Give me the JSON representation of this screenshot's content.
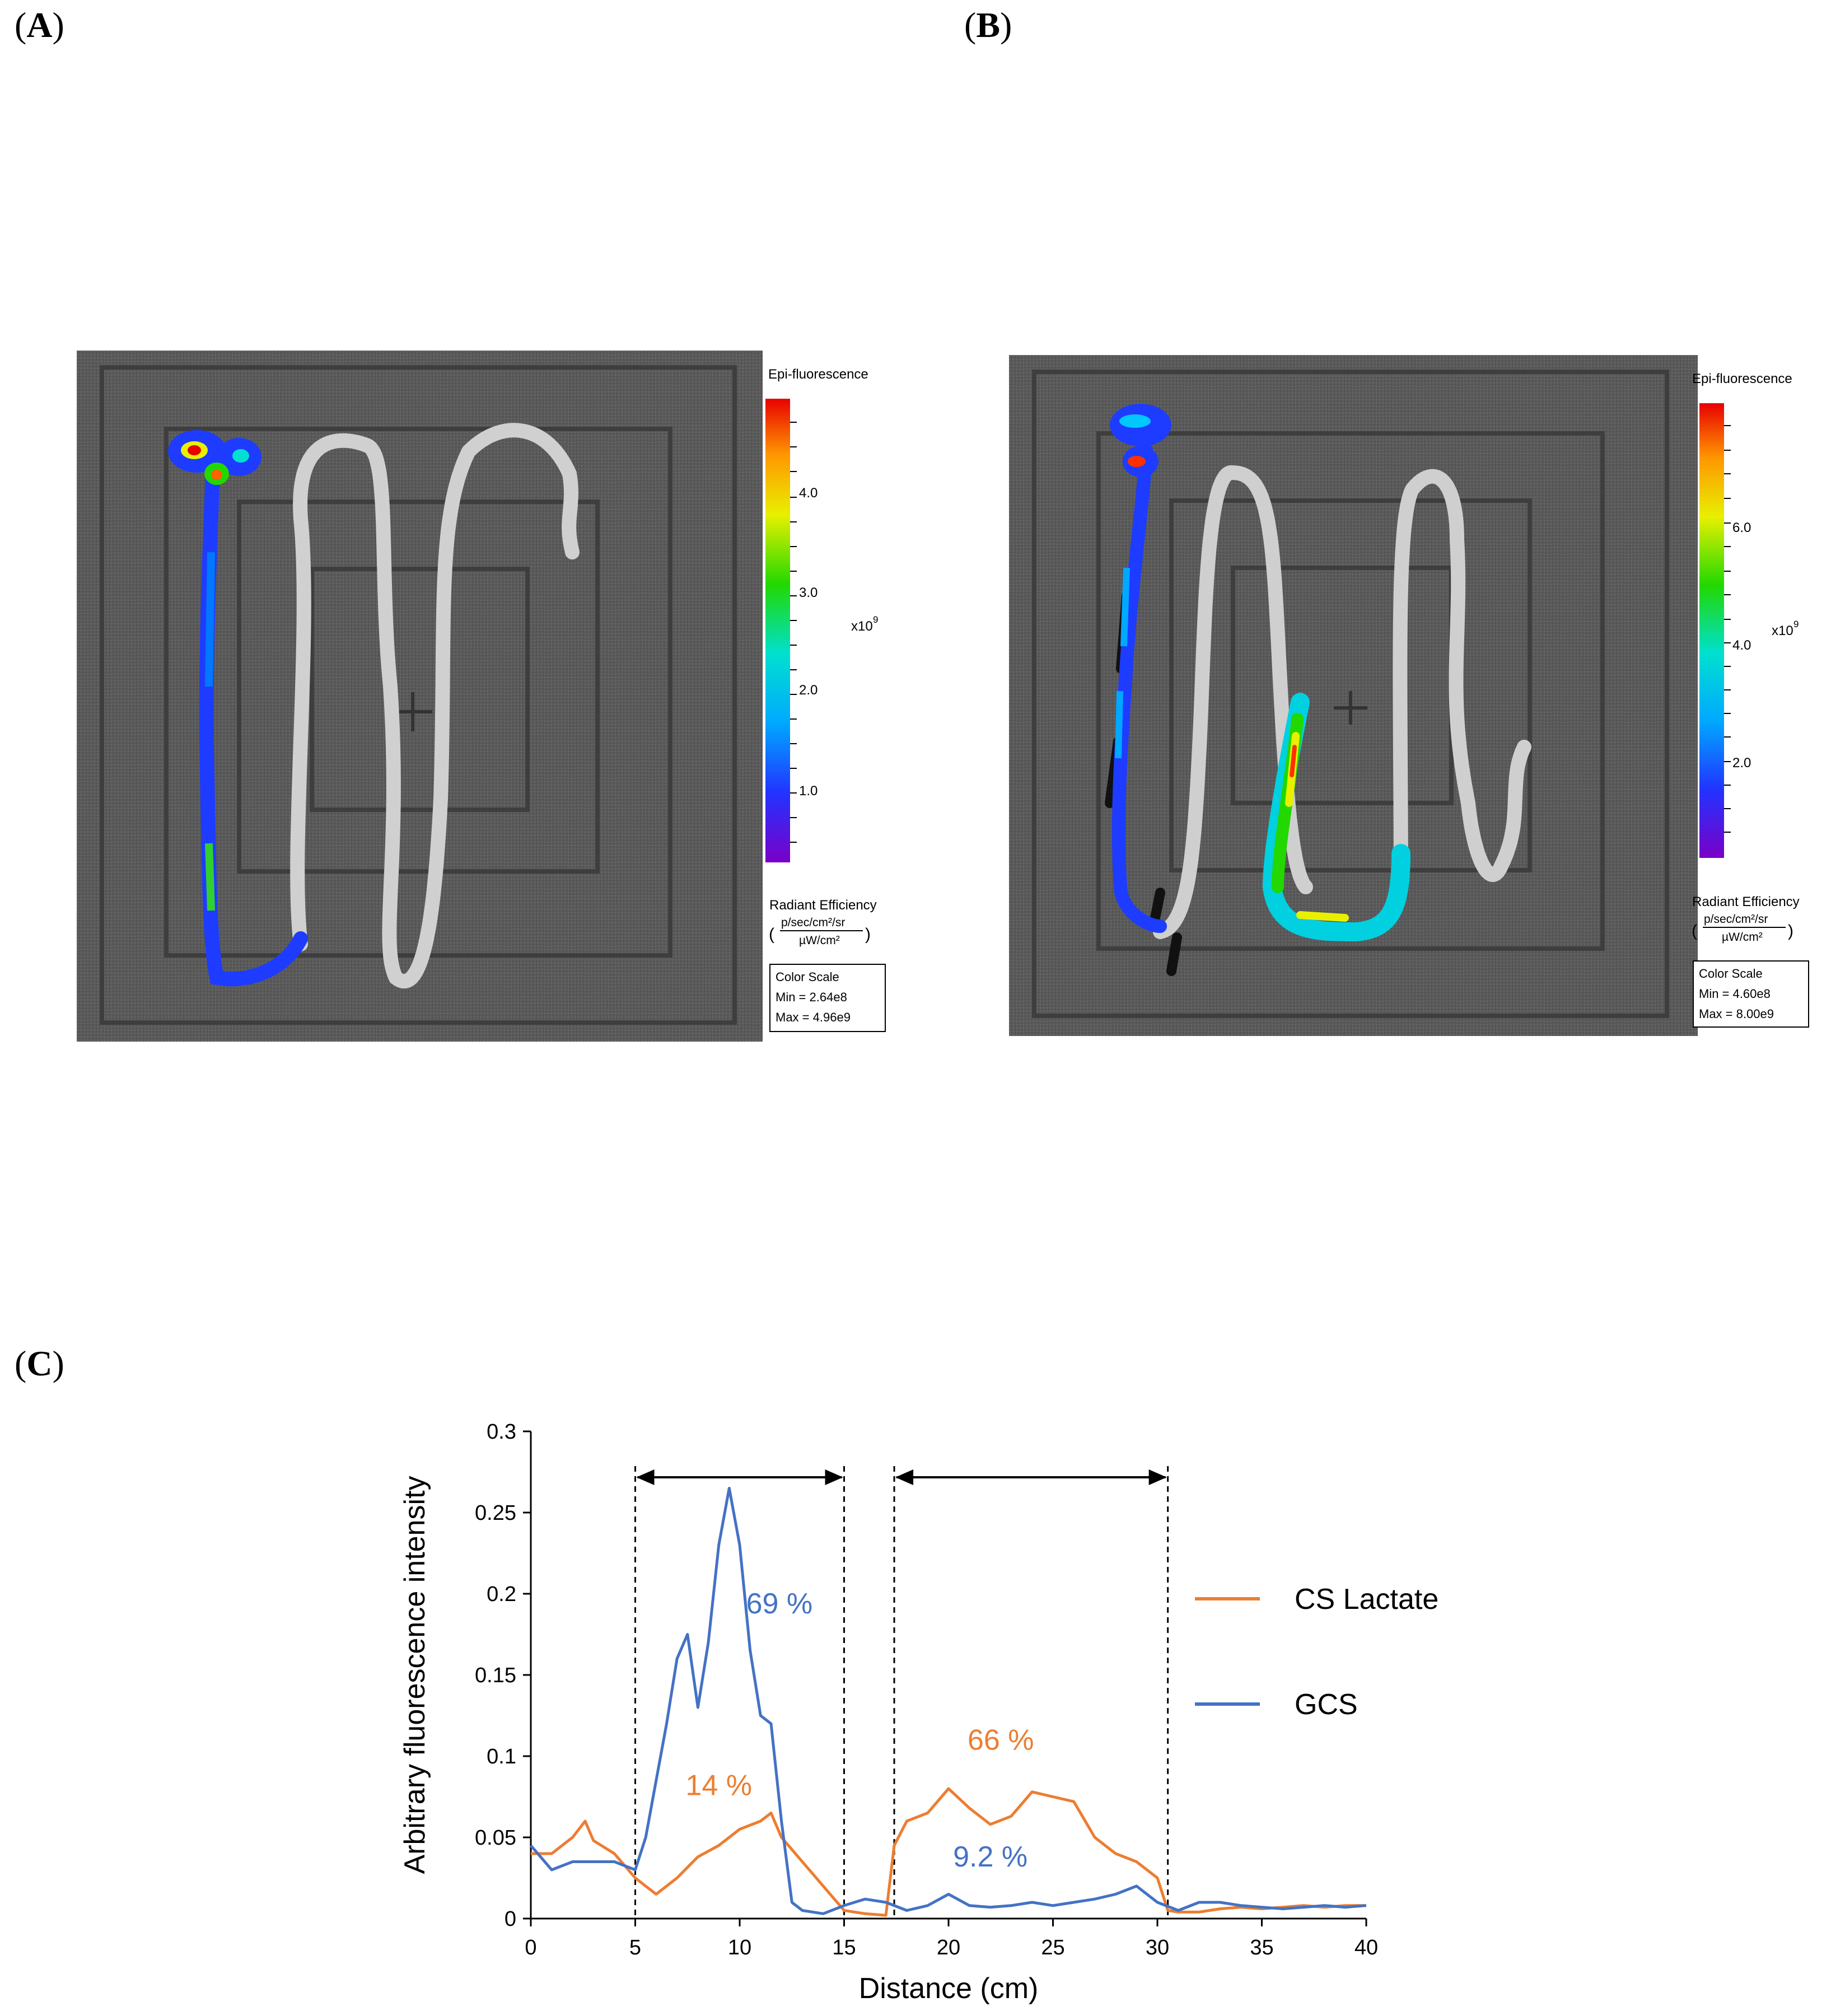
{
  "panels": {
    "A": {
      "letter": "A",
      "legend": {
        "title": "Epi-fluorescence",
        "ticks": [
          "4.0",
          "3.0",
          "2.0",
          "1.0"
        ],
        "exponent_base": "x10",
        "exponent_pow": "9",
        "units_title": "Radiant Efficiency",
        "units_num": "p/sec/cm²/sr",
        "units_den": "µW/cm²",
        "scale_title": "Color Scale",
        "scale_min": "Min = 2.64e8",
        "scale_max": "Max = 4.96e9"
      }
    },
    "B": {
      "letter": "B",
      "legend": {
        "title": "Epi-fluorescence",
        "ticks": [
          "6.0",
          "4.0",
          "2.0"
        ],
        "exponent_base": "x10",
        "exponent_pow": "9",
        "units_title": "Radiant Efficiency",
        "units_num": "p/sec/cm²/sr",
        "units_den": "µW/cm²",
        "scale_title": "Color Scale",
        "scale_min": "Min = 4.60e8",
        "scale_max": "Max = 8.00e9"
      }
    },
    "C": {
      "letter": "C"
    }
  },
  "chart_data": {
    "type": "line",
    "xlabel": "Distance (cm)",
    "ylabel": "Arbitrary fluorescence intensity",
    "xlim": [
      0,
      40
    ],
    "ylim": [
      0,
      0.3
    ],
    "xticks": [
      "0",
      "5",
      "10",
      "15",
      "20",
      "25",
      "30",
      "35",
      "40"
    ],
    "yticks": [
      "0",
      "0.05",
      "0.1",
      "0.15",
      "0.2",
      "0.25",
      "0.3"
    ],
    "grid": false,
    "legend_position": "right",
    "series": [
      {
        "name": "CS Lactate",
        "color": "#ED7D31",
        "x": [
          0,
          1,
          2,
          2.6,
          3,
          4,
          5,
          6,
          7,
          8,
          9,
          10,
          11,
          11.5,
          12,
          13,
          14,
          15,
          16,
          17,
          17.4,
          18,
          19,
          20,
          21,
          22,
          23,
          24,
          25,
          26,
          27,
          28,
          29,
          30,
          30.5,
          31,
          32,
          33,
          34,
          35,
          36,
          37,
          38,
          39,
          40
        ],
        "y": [
          0.04,
          0.04,
          0.05,
          0.06,
          0.048,
          0.04,
          0.025,
          0.015,
          0.025,
          0.038,
          0.045,
          0.055,
          0.06,
          0.065,
          0.05,
          0.035,
          0.02,
          0.005,
          0.003,
          0.002,
          0.045,
          0.06,
          0.065,
          0.08,
          0.068,
          0.058,
          0.063,
          0.078,
          0.075,
          0.072,
          0.05,
          0.04,
          0.035,
          0.025,
          0.005,
          0.004,
          0.004,
          0.006,
          0.007,
          0.006,
          0.007,
          0.008,
          0.007,
          0.008,
          0.008
        ]
      },
      {
        "name": "GCS",
        "color": "#4472C4",
        "x": [
          0,
          1,
          2,
          3,
          4,
          5,
          5.5,
          6,
          6.5,
          7,
          7.5,
          8,
          8.5,
          9,
          9.5,
          10,
          10.5,
          11,
          11.5,
          12,
          12.5,
          13,
          14,
          15,
          16,
          17,
          18,
          19,
          20,
          21,
          22,
          23,
          24,
          25,
          26,
          27,
          28,
          29,
          30,
          31,
          32,
          33,
          34,
          35,
          36,
          37,
          38,
          39,
          40
        ],
        "y": [
          0.045,
          0.03,
          0.035,
          0.035,
          0.035,
          0.03,
          0.05,
          0.085,
          0.12,
          0.16,
          0.175,
          0.13,
          0.17,
          0.23,
          0.265,
          0.23,
          0.165,
          0.125,
          0.12,
          0.06,
          0.01,
          0.005,
          0.003,
          0.008,
          0.012,
          0.01,
          0.005,
          0.008,
          0.015,
          0.008,
          0.007,
          0.008,
          0.01,
          0.008,
          0.01,
          0.012,
          0.015,
          0.02,
          0.01,
          0.005,
          0.01,
          0.01,
          0.008,
          0.007,
          0.006,
          0.007,
          0.008,
          0.007,
          0.008
        ]
      }
    ],
    "region_markers": [
      {
        "x_start": 5,
        "x_end": 15
      },
      {
        "x_start": 17.4,
        "x_end": 30.5
      }
    ],
    "annotations": [
      {
        "text": "69 %",
        "x": 11.9,
        "y": 0.188,
        "color": "#4472C4"
      },
      {
        "text": "14 %",
        "x": 9.0,
        "y": 0.076,
        "color": "#ED7D31"
      },
      {
        "text": "66 %",
        "x": 22.5,
        "y": 0.104,
        "color": "#ED7D31"
      },
      {
        "text": "9.2 %",
        "x": 22.0,
        "y": 0.032,
        "color": "#4472C4"
      }
    ]
  }
}
